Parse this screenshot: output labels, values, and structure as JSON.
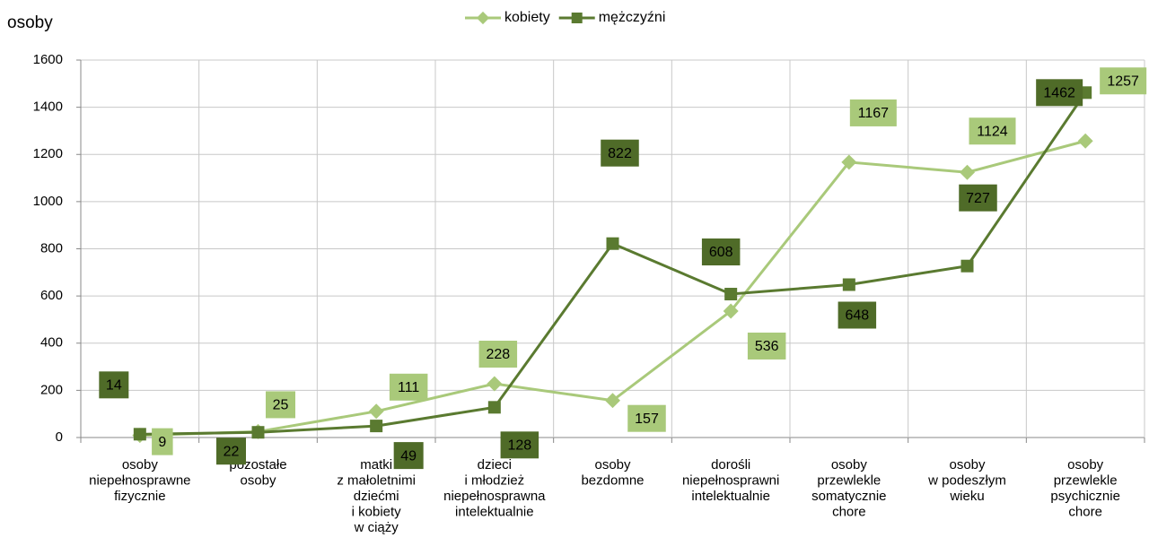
{
  "chart_data": {
    "type": "line",
    "y_label": "osoby",
    "categories": [
      [
        "osoby",
        "niepełnosprawne",
        "fizycznie"
      ],
      [
        "pozostałe",
        "osoby"
      ],
      [
        "matki",
        "z małoletnimi",
        "dziećmi",
        "i kobiety",
        "w ciąży"
      ],
      [
        "dzieci",
        "i młodzież",
        "niepełnosprawna",
        "intelektualnie"
      ],
      [
        "osoby",
        "bezdomne"
      ],
      [
        "dorośli",
        "niepełnosprawni",
        "intelektualnie"
      ],
      [
        "osoby",
        "przewlekle",
        "somatycznie",
        "chore"
      ],
      [
        "osoby",
        "w podeszłym",
        "wieku"
      ],
      [
        "osoby",
        "przewlekle",
        "psychicznie",
        "chore"
      ]
    ],
    "series": [
      {
        "name": "kobiety",
        "color": "#a9c97a",
        "values": [
          9,
          25,
          111,
          228,
          157,
          536,
          1167,
          1124,
          1257
        ]
      },
      {
        "name": "mężczyźni",
        "color": "#5a7a30",
        "values": [
          14,
          22,
          49,
          128,
          822,
          608,
          648,
          727,
          1462
        ]
      }
    ],
    "ylim": [
      0,
      1600
    ],
    "yticks": [
      0,
      200,
      400,
      600,
      800,
      1000,
      1200,
      1400,
      1600
    ],
    "grid": true,
    "legend": "top"
  }
}
